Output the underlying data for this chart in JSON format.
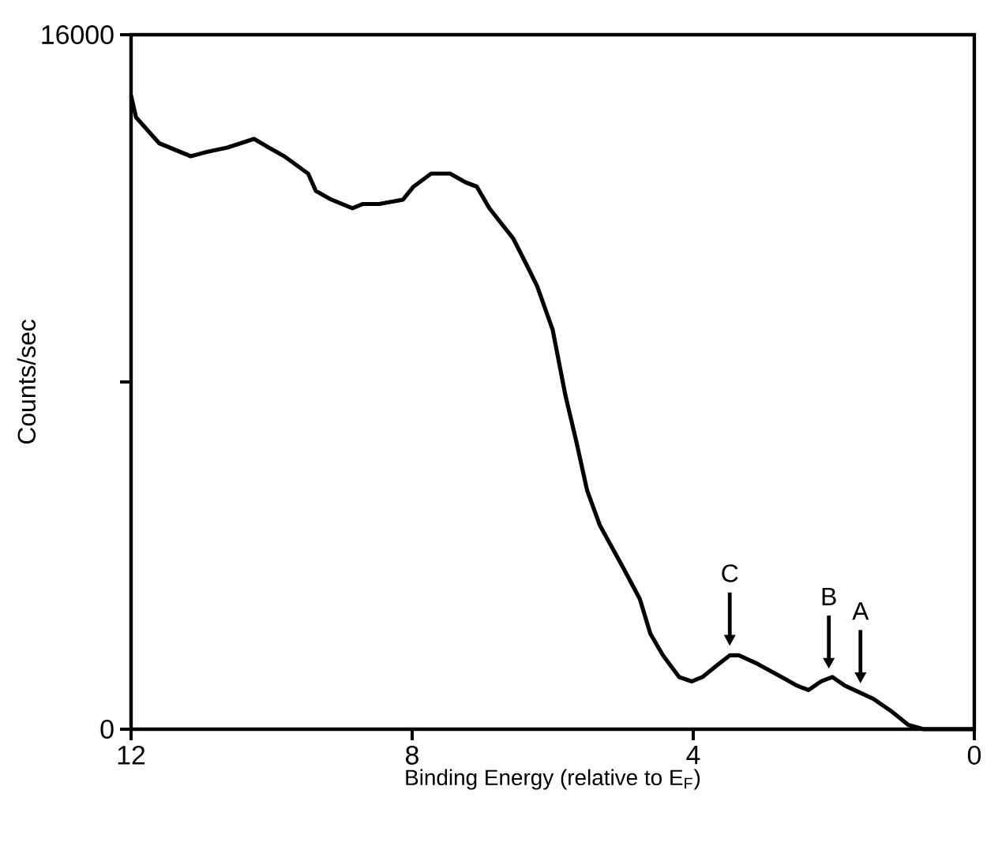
{
  "chart_data": {
    "type": "line",
    "xlabel": "Binding Energy (relative to E$_{F}$)",
    "ylabel": "Counts/sec",
    "xlim": [
      12,
      0
    ],
    "xticks": [
      12,
      8,
      4,
      0
    ],
    "ylim": [
      0,
      16000
    ],
    "yticks": [
      0,
      {
        "value": 8000,
        "label": null
      },
      16000
    ],
    "grid": false,
    "marker": "none",
    "line_style": "solid",
    "x": [
      12,
      11.93,
      11.6,
      11.15,
      10.92,
      10.63,
      10.25,
      10.04,
      9.82,
      9.48,
      9.37,
      9.15,
      8.85,
      8.7,
      8.47,
      8.13,
      7.98,
      7.73,
      7.46,
      7.24,
      7.08,
      6.9,
      6.56,
      6.34,
      6.22,
      6.0,
      5.82,
      5.66,
      5.51,
      5.33,
      4.99,
      4.76,
      4.61,
      4.43,
      4.2,
      4.02,
      3.87,
      3.64,
      3.48,
      3.35,
      3.08,
      2.74,
      2.52,
      2.36,
      2.18,
      2.02,
      1.84,
      1.44,
      1.17,
      0.94,
      0.72,
      0
    ],
    "series": [
      {
        "color": "#000000",
        "values": [
          14600,
          14100,
          13500,
          13200,
          13300,
          13400,
          13600,
          13400,
          13200,
          12800,
          12400,
          12200,
          12000,
          12100,
          12100,
          12200,
          12500,
          12800,
          12800,
          12600,
          12500,
          12000,
          11300,
          10600,
          10200,
          9200,
          7700,
          6600,
          5500,
          4700,
          3700,
          3000,
          2200,
          1700,
          1200,
          1100,
          1200,
          1500,
          1700,
          1700,
          1500,
          1200,
          1000,
          900,
          1100,
          1200,
          1000,
          700,
          400,
          100,
          0,
          0
        ]
      }
    ],
    "annotations": [
      {
        "text": "C",
        "x": 3.48,
        "y": 1700
      },
      {
        "text": "B",
        "x": 2.07,
        "y": 1170
      },
      {
        "text": "A",
        "x": 1.62,
        "y": 835
      }
    ]
  }
}
